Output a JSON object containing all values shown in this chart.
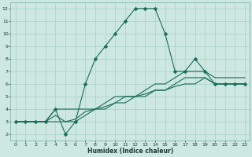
{
  "xlabel": "Humidex (Indice chaleur)",
  "ylabel": "",
  "xlim": [
    -0.5,
    23.5
  ],
  "ylim": [
    1.5,
    12.5
  ],
  "xticks": [
    0,
    1,
    2,
    3,
    4,
    5,
    6,
    7,
    8,
    9,
    10,
    11,
    12,
    13,
    14,
    15,
    16,
    17,
    18,
    19,
    20,
    21,
    22,
    23
  ],
  "yticks": [
    2,
    3,
    4,
    5,
    6,
    7,
    8,
    9,
    10,
    11,
    12
  ],
  "bg_color": "#cce8e0",
  "grid_color": "#aacfc8",
  "line_color": "#1a6b5a",
  "lines": [
    {
      "x": [
        0,
        1,
        2,
        3,
        4,
        5,
        6,
        7,
        8,
        9,
        10,
        11,
        12,
        13,
        14,
        15,
        16,
        17,
        18,
        19,
        20,
        21,
        22,
        23
      ],
      "y": [
        3,
        3,
        3,
        3,
        4,
        2,
        3,
        6,
        8,
        9,
        10,
        11,
        12,
        12,
        12,
        10,
        7,
        7,
        8,
        7,
        6,
        6,
        6,
        6
      ],
      "marker": "D",
      "ms": 2.5
    },
    {
      "x": [
        0,
        1,
        2,
        3,
        4,
        5,
        6,
        7,
        8,
        9,
        10,
        11,
        12,
        13,
        14,
        15,
        16,
        17,
        18,
        19,
        20,
        21,
        22,
        23
      ],
      "y": [
        3,
        3,
        3,
        3,
        4,
        4,
        4,
        4,
        4,
        4.5,
        5,
        5,
        5,
        5.5,
        6,
        6,
        6.5,
        7,
        7,
        7,
        6.5,
        6.5,
        6.5,
        6.5
      ],
      "marker": null,
      "ms": 0
    },
    {
      "x": [
        0,
        1,
        2,
        3,
        4,
        5,
        6,
        7,
        8,
        9,
        10,
        11,
        12,
        13,
        14,
        15,
        16,
        17,
        18,
        19,
        20,
        21,
        22,
        23
      ],
      "y": [
        3,
        3,
        3,
        3,
        3.5,
        3,
        3.2,
        3.8,
        4,
        4.2,
        4.5,
        5,
        5,
        5.2,
        5.5,
        5.5,
        6,
        6.5,
        6.5,
        6.5,
        6,
        6,
        6,
        6
      ],
      "marker": null,
      "ms": 0
    },
    {
      "x": [
        0,
        1,
        2,
        3,
        4,
        5,
        6,
        7,
        8,
        9,
        10,
        11,
        12,
        13,
        14,
        15,
        16,
        17,
        18,
        19,
        20,
        21,
        22,
        23
      ],
      "y": [
        3,
        3,
        3,
        3,
        3,
        3,
        3,
        3.5,
        4,
        4,
        4.5,
        4.5,
        5,
        5,
        5.5,
        5.5,
        5.8,
        6,
        6,
        6.5,
        6,
        6,
        6,
        6
      ],
      "marker": null,
      "ms": 0
    }
  ]
}
